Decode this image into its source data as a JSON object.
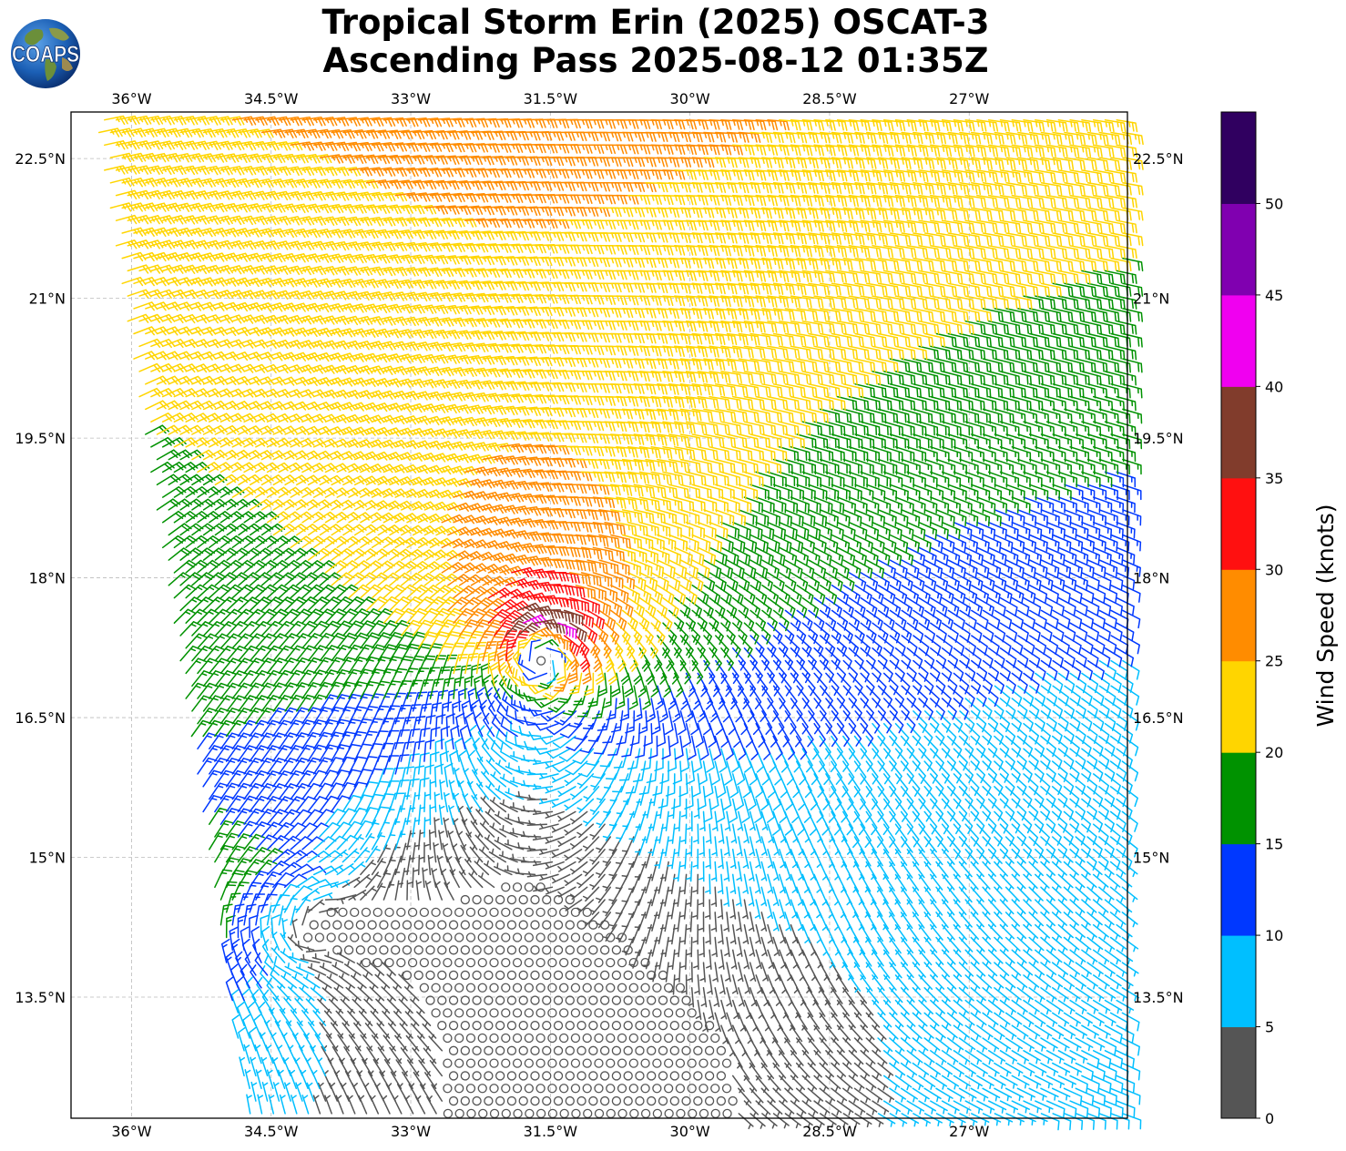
{
  "title": {
    "line1": "Tropical Storm Erin (2025) OSCAT-3",
    "line2": "Ascending Pass 2025-08-12 01:35Z"
  },
  "logo": {
    "text": "COAPS",
    "icon": "globe-logo-icon"
  },
  "map": {
    "lon_range": [
      -36.65,
      -25.3
    ],
    "lat_range": [
      12.2,
      23.0
    ],
    "lon_ticks": [
      "36°W",
      "34.5°W",
      "33°W",
      "31.5°W",
      "30°W",
      "28.5°W",
      "27°W"
    ],
    "lon_tick_values": [
      -36,
      -34.5,
      -33,
      -31.5,
      -30,
      -28.5,
      -27
    ],
    "lat_ticks": [
      "22.5°N",
      "21°N",
      "19.5°N",
      "18°N",
      "16.5°N",
      "15°N",
      "13.5°N"
    ],
    "lat_tick_values": [
      22.5,
      21,
      19.5,
      18,
      16.5,
      15,
      13.5
    ],
    "grid": true,
    "storm_center": {
      "lon": -31.6,
      "lat": 17.2
    },
    "secondary_vortex": {
      "lon": -34.5,
      "lat": 14.3
    }
  },
  "colorbar": {
    "label": "Wind Speed (knots)",
    "ticks": [
      "0",
      "5",
      "10",
      "15",
      "20",
      "25",
      "30",
      "35",
      "40",
      "45",
      "50"
    ],
    "bins": [
      {
        "min": 0,
        "max": 5,
        "color": "#555555"
      },
      {
        "min": 5,
        "max": 10,
        "color": "#00bfff"
      },
      {
        "min": 10,
        "max": 15,
        "color": "#0038ff"
      },
      {
        "min": 15,
        "max": 20,
        "color": "#009200"
      },
      {
        "min": 20,
        "max": 25,
        "color": "#ffd500"
      },
      {
        "min": 25,
        "max": 30,
        "color": "#ff8c00"
      },
      {
        "min": 30,
        "max": 35,
        "color": "#ff1010"
      },
      {
        "min": 35,
        "max": 40,
        "color": "#813c2c"
      },
      {
        "min": 40,
        "max": 45,
        "color": "#f000f0"
      },
      {
        "min": 45,
        "max": 50,
        "color": "#8000b0"
      },
      {
        "min": 50,
        "max": 55,
        "color": "#300060"
      }
    ]
  }
}
